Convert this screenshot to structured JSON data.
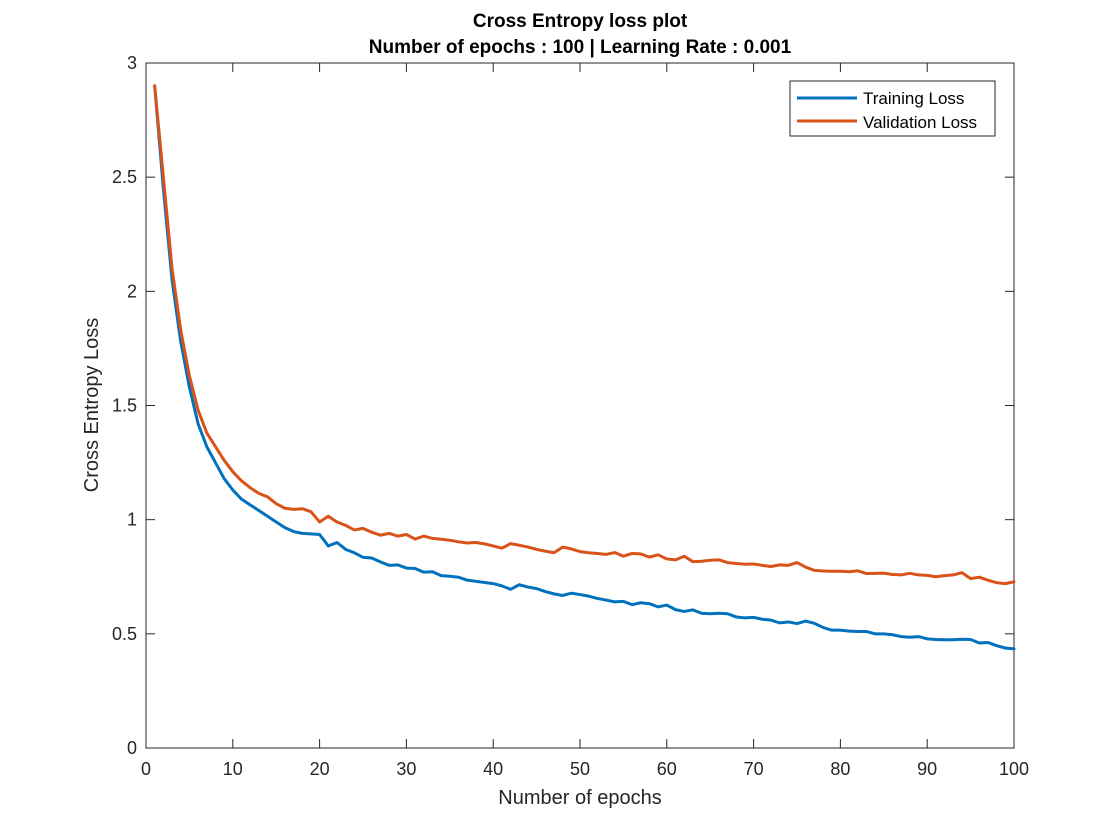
{
  "chart_data": {
    "type": "line",
    "title": "Cross Entropy loss plot",
    "subtitle": "Number of epochs : 100 | Learning Rate : 0.001",
    "xlabel": "Number of epochs",
    "ylabel": "Cross Entropy Loss",
    "xlim": [
      0,
      100
    ],
    "ylim": [
      0,
      3
    ],
    "xticks": [
      "0",
      "10",
      "20",
      "30",
      "40",
      "50",
      "60",
      "70",
      "80",
      "90",
      "100"
    ],
    "yticks": [
      "0",
      "0.5",
      "1",
      "1.5",
      "2",
      "2.5",
      "3"
    ],
    "xtick_values": [
      0,
      10,
      20,
      30,
      40,
      50,
      60,
      70,
      80,
      90,
      100
    ],
    "ytick_values": [
      0,
      0.5,
      1,
      1.5,
      2,
      2.5,
      3
    ],
    "grid": false,
    "legend_position": "top-right",
    "x": [
      1,
      2,
      3,
      4,
      5,
      6,
      7,
      8,
      9,
      10,
      11,
      12,
      13,
      14,
      15,
      16,
      17,
      18,
      19,
      20,
      21,
      22,
      23,
      24,
      25,
      26,
      27,
      28,
      29,
      30,
      31,
      32,
      33,
      34,
      35,
      36,
      37,
      38,
      39,
      40,
      41,
      42,
      43,
      44,
      45,
      46,
      47,
      48,
      49,
      50,
      51,
      52,
      53,
      54,
      55,
      56,
      57,
      58,
      59,
      60,
      61,
      62,
      63,
      64,
      65,
      66,
      67,
      68,
      69,
      70,
      71,
      72,
      73,
      74,
      75,
      76,
      77,
      78,
      79,
      80,
      81,
      82,
      83,
      84,
      85,
      86,
      87,
      88,
      89,
      90,
      91,
      92,
      93,
      94,
      95,
      96,
      97,
      98,
      99,
      100
    ],
    "series": [
      {
        "name": "Training Loss",
        "color": "#0072BD",
        "values": [
          2.9,
          2.45,
          2.05,
          1.78,
          1.58,
          1.42,
          1.32,
          1.25,
          1.18,
          1.13,
          1.09,
          1.065,
          1.04,
          1.015,
          0.99,
          0.965,
          0.948,
          0.94,
          0.938,
          0.935,
          0.885,
          0.9,
          0.87,
          0.855,
          0.835,
          0.832,
          0.815,
          0.8,
          0.802,
          0.788,
          0.786,
          0.77,
          0.772,
          0.755,
          0.752,
          0.748,
          0.735,
          0.73,
          0.725,
          0.72,
          0.71,
          0.695,
          0.715,
          0.705,
          0.698,
          0.685,
          0.675,
          0.668,
          0.678,
          0.672,
          0.665,
          0.655,
          0.648,
          0.64,
          0.642,
          0.628,
          0.636,
          0.632,
          0.618,
          0.626,
          0.606,
          0.598,
          0.605,
          0.59,
          0.588,
          0.59,
          0.588,
          0.574,
          0.57,
          0.572,
          0.564,
          0.56,
          0.548,
          0.552,
          0.545,
          0.556,
          0.546,
          0.528,
          0.516,
          0.516,
          0.512,
          0.51,
          0.51,
          0.5,
          0.5,
          0.496,
          0.488,
          0.485,
          0.488,
          0.478,
          0.475,
          0.474,
          0.474,
          0.476,
          0.475,
          0.46,
          0.462,
          0.448,
          0.438,
          0.434
        ]
      },
      {
        "name": "Validation Loss",
        "color": "#D95319",
        "values": [
          2.9,
          2.5,
          2.1,
          1.83,
          1.63,
          1.48,
          1.38,
          1.32,
          1.26,
          1.21,
          1.17,
          1.14,
          1.115,
          1.1,
          1.07,
          1.05,
          1.045,
          1.048,
          1.035,
          0.99,
          1.015,
          0.99,
          0.975,
          0.955,
          0.962,
          0.945,
          0.932,
          0.94,
          0.928,
          0.935,
          0.915,
          0.928,
          0.918,
          0.914,
          0.91,
          0.903,
          0.898,
          0.9,
          0.894,
          0.885,
          0.875,
          0.895,
          0.888,
          0.88,
          0.87,
          0.862,
          0.855,
          0.88,
          0.872,
          0.86,
          0.855,
          0.852,
          0.848,
          0.856,
          0.84,
          0.852,
          0.85,
          0.836,
          0.846,
          0.828,
          0.824,
          0.84,
          0.816,
          0.818,
          0.822,
          0.824,
          0.812,
          0.808,
          0.805,
          0.806,
          0.8,
          0.795,
          0.802,
          0.8,
          0.812,
          0.792,
          0.778,
          0.775,
          0.774,
          0.774,
          0.772,
          0.776,
          0.764,
          0.765,
          0.766,
          0.76,
          0.758,
          0.765,
          0.758,
          0.756,
          0.75,
          0.755,
          0.758,
          0.768,
          0.742,
          0.748,
          0.735,
          0.724,
          0.72,
          0.728
        ]
      }
    ]
  }
}
